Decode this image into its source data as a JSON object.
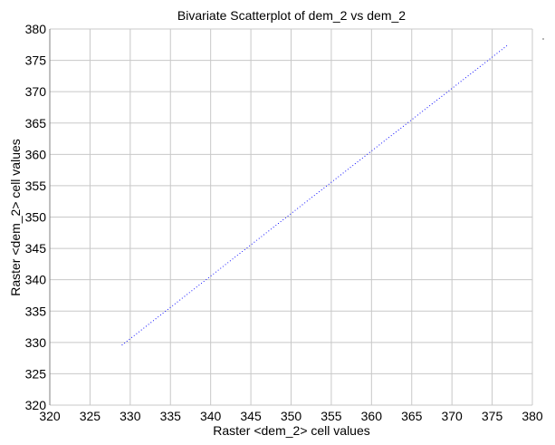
{
  "chart_data": {
    "type": "scatter",
    "title": "Bivariate Scatterplot of dem_2 vs dem_2",
    "xlabel": "Raster <dem_2> cell values",
    "ylabel": "Raster <dem_2> cell values",
    "xlim": [
      320,
      380
    ],
    "ylim": [
      320,
      380
    ],
    "xticks": [
      320,
      325,
      330,
      335,
      340,
      345,
      350,
      355,
      360,
      365,
      370,
      375,
      380
    ],
    "yticks": [
      320,
      325,
      330,
      335,
      340,
      345,
      350,
      355,
      360,
      365,
      370,
      375,
      380
    ],
    "grid": true,
    "series": [
      {
        "color": "#0000ff",
        "x_range": [
          329,
          376.8
        ],
        "y_range": [
          329.6,
          377.3
        ]
      }
    ],
    "colors": {
      "grid": "#c8c8c8",
      "axis": "#000000",
      "points": "#0000ff"
    }
  }
}
